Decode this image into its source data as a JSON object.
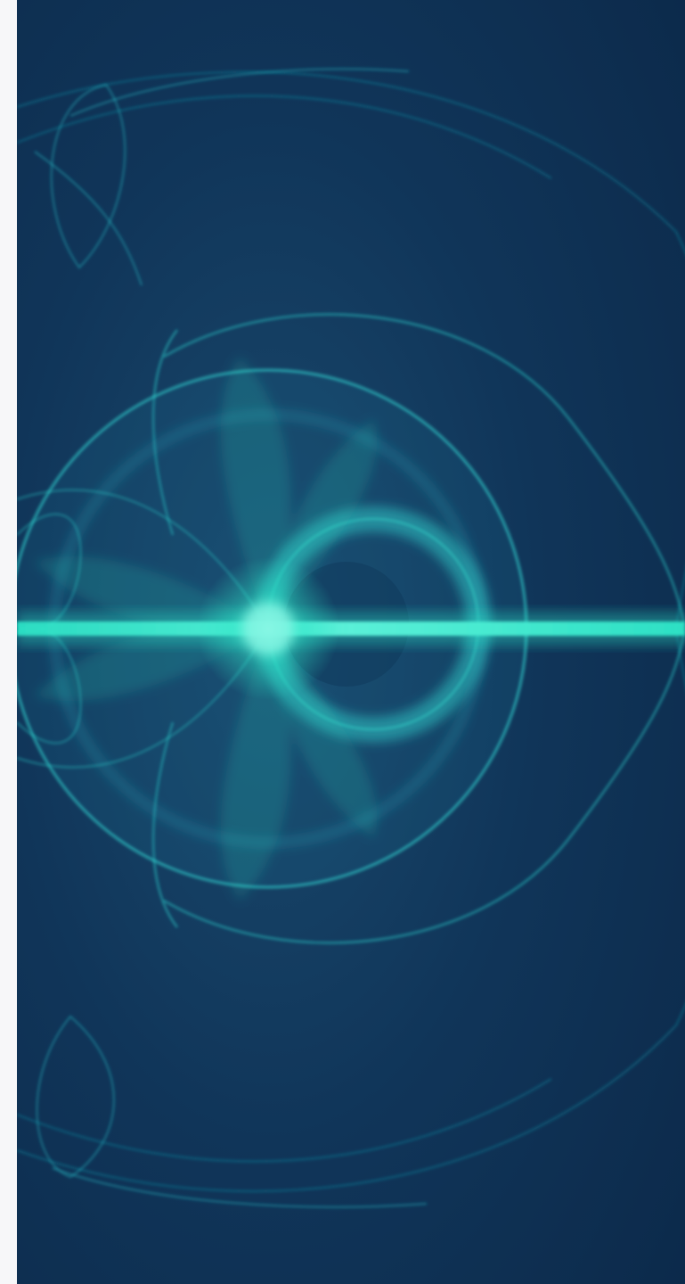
{
  "artwork": {
    "background_color": "#0d2c4e",
    "glow_color": "#2ee6c8",
    "line_color": "#1fb3c4",
    "margin_color": "#f7f7f9"
  }
}
